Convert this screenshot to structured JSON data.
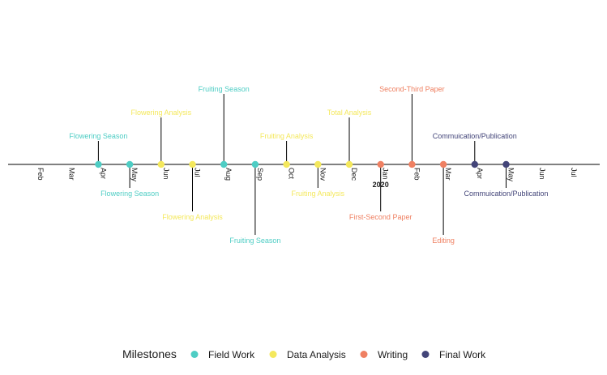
{
  "chart_data": {
    "type": "timeline",
    "categories": [
      {
        "name": "Field Work",
        "color": "#4ecdc4"
      },
      {
        "name": "Data Analysis",
        "color": "#f4e85c"
      },
      {
        "name": "Writing",
        "color": "#ef8062"
      },
      {
        "name": "Final Work",
        "color": "#434579"
      }
    ],
    "months": [
      "Feb",
      "Mar",
      "Apr",
      "May",
      "Jun",
      "Jul",
      "Aug",
      "Sep",
      "Oct",
      "Nov",
      "Dec",
      "Jan",
      "Feb",
      "Mar",
      "Apr",
      "May",
      "Jun",
      "Jul"
    ],
    "year_marker": {
      "month_index": 11,
      "label": "2020"
    },
    "events": [
      {
        "label": "Flowering Season",
        "category": "Field Work",
        "month_index": 2,
        "height": 0.5
      },
      {
        "label": "Flowering Season",
        "category": "Field Work",
        "month_index": 3,
        "height": -0.5
      },
      {
        "label": "Flowering Analysis",
        "category": "Data Analysis",
        "month_index": 4,
        "height": 1.0
      },
      {
        "label": "Flowering Analysis",
        "category": "Data Analysis",
        "month_index": 5,
        "height": -1.0
      },
      {
        "label": "Fruiting Season",
        "category": "Field Work",
        "month_index": 6,
        "height": 1.5
      },
      {
        "label": "Fruiting Season",
        "category": "Field Work",
        "month_index": 7,
        "height": -1.5
      },
      {
        "label": "Fruiting Analysis",
        "category": "Data Analysis",
        "month_index": 8,
        "height": 0.5
      },
      {
        "label": "Fruiting Analysis",
        "category": "Data Analysis",
        "month_index": 9,
        "height": -0.5
      },
      {
        "label": "Total Analysis",
        "category": "Data Analysis",
        "month_index": 10,
        "height": 1.0
      },
      {
        "label": "First-Second Paper",
        "category": "Writing",
        "month_index": 11,
        "height": -1.0
      },
      {
        "label": "Second-Third Paper",
        "category": "Writing",
        "month_index": 12,
        "height": 1.5
      },
      {
        "label": "Editing",
        "category": "Writing",
        "month_index": 13,
        "height": -1.5
      },
      {
        "label": "Commuication/Publication",
        "category": "Final Work",
        "month_index": 14,
        "height": 0.5
      },
      {
        "label": "Commuication/Publication",
        "category": "Final Work",
        "month_index": 15,
        "height": -0.5
      }
    ],
    "legend": {
      "title": "Milestones",
      "position": "bottom"
    }
  }
}
